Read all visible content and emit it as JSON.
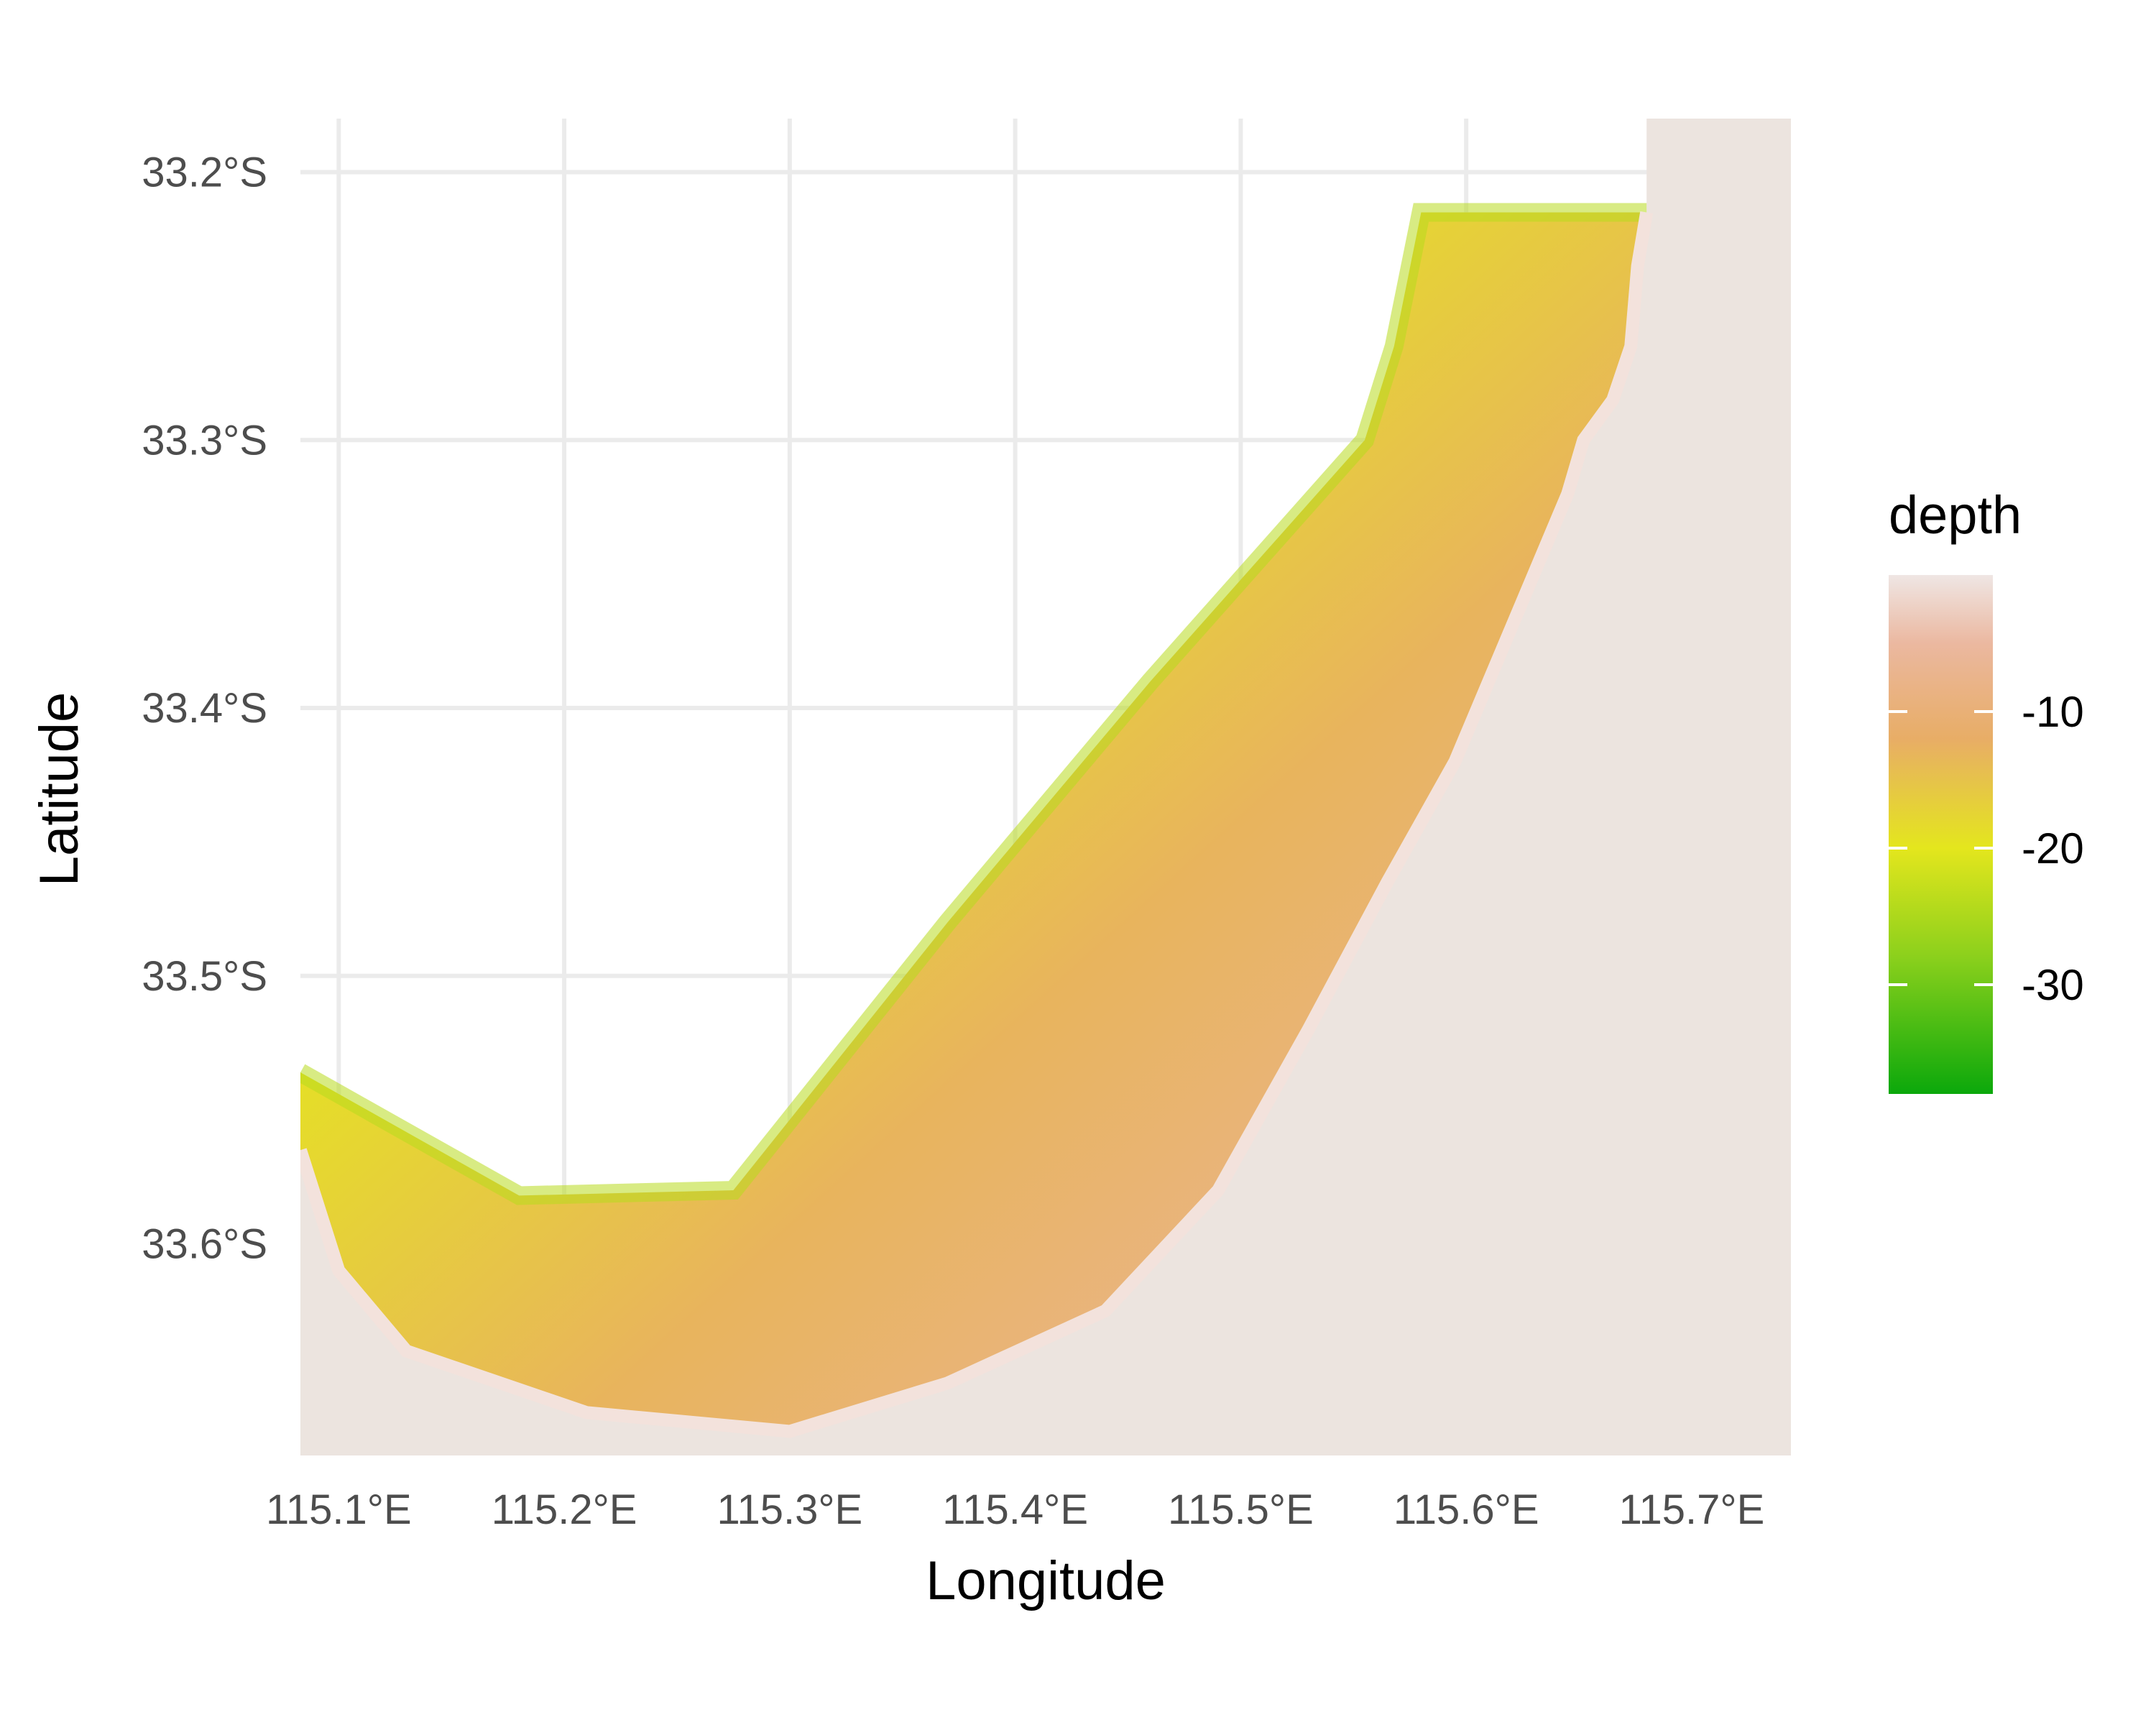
{
  "chart_data": {
    "type": "heatmap",
    "title": "",
    "xlabel": "Longitude",
    "ylabel": "Latitude",
    "x_ticks": [
      {
        "value": 115.1,
        "label": "115.1°E"
      },
      {
        "value": 115.2,
        "label": "115.2°E"
      },
      {
        "value": 115.3,
        "label": "115.3°E"
      },
      {
        "value": 115.4,
        "label": "115.4°E"
      },
      {
        "value": 115.5,
        "label": "115.5°E"
      },
      {
        "value": 115.6,
        "label": "115.6°E"
      },
      {
        "value": 115.7,
        "label": "115.7°E"
      }
    ],
    "y_ticks": [
      {
        "value": -33.2,
        "label": "33.2°S"
      },
      {
        "value": -33.3,
        "label": "33.3°S"
      },
      {
        "value": -33.4,
        "label": "33.4°S"
      },
      {
        "value": -33.5,
        "label": "33.5°S"
      },
      {
        "value": -33.6,
        "label": "33.6°S"
      }
    ],
    "xlim": [
      115.083,
      115.744
    ],
    "ylim": [
      -33.679,
      -33.18
    ],
    "grid": true,
    "legend": {
      "title": "depth",
      "placement": "right",
      "range": [
        -38,
        0
      ],
      "ticks": [
        {
          "value": -10,
          "label": "-10"
        },
        {
          "value": -20,
          "label": "-20"
        },
        {
          "value": -30,
          "label": "-30"
        }
      ],
      "colors": [
        {
          "value": 0,
          "color": "#efe6e4"
        },
        {
          "value": -5,
          "color": "#ebb8a0"
        },
        {
          "value": -12,
          "color": "#e8ad66"
        },
        {
          "value": -20,
          "color": "#e4e61d"
        },
        {
          "value": -28,
          "color": "#8bd01c"
        },
        {
          "value": -38,
          "color": "#0ba80b"
        }
      ]
    },
    "land_color": "#ece4df",
    "survey_area": {
      "offshore_edge": [
        [
          115.083,
          -33.536
        ],
        [
          115.18,
          -33.582
        ],
        [
          115.275,
          -33.58
        ],
        [
          115.37,
          -33.48
        ],
        [
          115.46,
          -33.39
        ],
        [
          115.555,
          -33.3
        ],
        [
          115.568,
          -33.265
        ],
        [
          115.58,
          -33.215
        ],
        [
          115.68,
          -33.215
        ]
      ],
      "shoreline": [
        [
          115.68,
          -33.215
        ],
        [
          115.676,
          -33.235
        ],
        [
          115.673,
          -33.265
        ],
        [
          115.665,
          -33.285
        ],
        [
          115.652,
          -33.3
        ],
        [
          115.645,
          -33.32
        ],
        [
          115.625,
          -33.36
        ],
        [
          115.595,
          -33.42
        ],
        [
          115.565,
          -33.465
        ],
        [
          115.53,
          -33.52
        ],
        [
          115.49,
          -33.58
        ],
        [
          115.44,
          -33.625
        ],
        [
          115.37,
          -33.652
        ],
        [
          115.3,
          -33.67
        ],
        [
          115.21,
          -33.663
        ],
        [
          115.13,
          -33.64
        ],
        [
          115.1,
          -33.61
        ],
        [
          115.083,
          -33.565
        ]
      ],
      "depth_profile": [
        {
          "fraction": 0.0,
          "depth": -26
        },
        {
          "fraction": 0.35,
          "depth": -19
        },
        {
          "fraction": 0.6,
          "depth": -13
        },
        {
          "fraction": 0.85,
          "depth": -7
        },
        {
          "fraction": 1.0,
          "depth": -2
        }
      ]
    }
  }
}
